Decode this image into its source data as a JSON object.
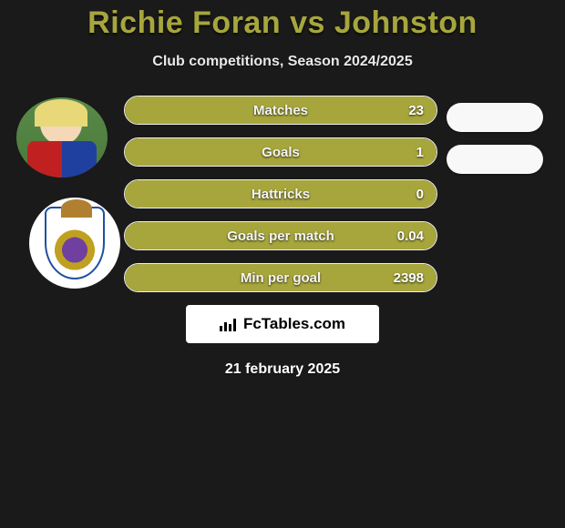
{
  "title_color": "#a7a63c",
  "title_parts": {
    "p1": "Richie Foran",
    "vs": "vs",
    "p2": "Johnston"
  },
  "subtitle": "Club competitions, Season 2024/2025",
  "bar_fill_color": "#a7a63c",
  "bar_border_color": "#f0f0f0",
  "bars": [
    {
      "label": "Matches",
      "value": "23",
      "fill_pct": 100
    },
    {
      "label": "Goals",
      "value": "1",
      "fill_pct": 100
    },
    {
      "label": "Hattricks",
      "value": "0",
      "fill_pct": 100
    },
    {
      "label": "Goals per match",
      "value": "0.04",
      "fill_pct": 100
    },
    {
      "label": "Min per goal",
      "value": "2398",
      "fill_pct": 100
    }
  ],
  "right_pills": [
    {
      "left_color": "#a7a63c",
      "left_pct": 0,
      "bg": "#f8f8f8"
    },
    {
      "left_color": "#a7a63c",
      "left_pct": 0,
      "bg": "#f8f8f8"
    }
  ],
  "footer_brand": "FcTables.com",
  "date_text": "21 february 2025"
}
